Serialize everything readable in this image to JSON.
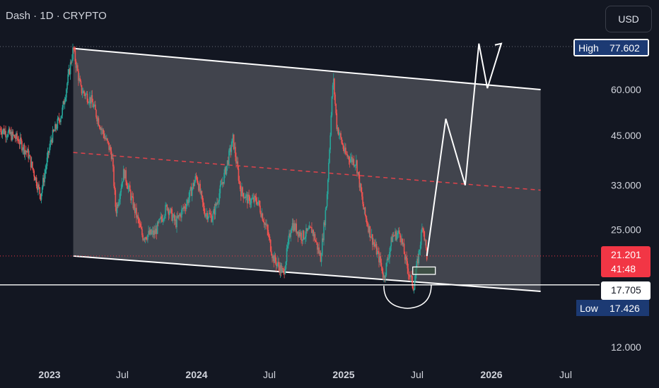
{
  "header": {
    "symbol_title": "Dash · 1D · CRYPTO",
    "currency_button": "USD"
  },
  "colors": {
    "background": "#131722",
    "channel_fill": "#4a4c55",
    "up": "#26a69a",
    "down": "#ef5350",
    "midline": "#e0434b",
    "current_line": "#f23645",
    "white": "#ffffff",
    "label_navy": "#1c3a73"
  },
  "chart_data": {
    "type": "candlestick",
    "title": "Dash · 1D · CRYPTO",
    "y_scale": "log",
    "y_ticks": [
      "60.000",
      "45.000",
      "33.000",
      "25.000",
      "12.000"
    ],
    "y_tick_values": [
      60,
      45,
      33,
      25,
      12
    ],
    "x_ticks": [
      {
        "label": "2023",
        "date": "2023-01-01",
        "bold": true
      },
      {
        "label": "Jul",
        "date": "2023-07-01",
        "bold": false
      },
      {
        "label": "2024",
        "date": "2024-01-01",
        "bold": true
      },
      {
        "label": "Jul",
        "date": "2024-07-01",
        "bold": false
      },
      {
        "label": "2025",
        "date": "2025-01-01",
        "bold": true
      },
      {
        "label": "Jul",
        "date": "2025-07-01",
        "bold": false
      },
      {
        "label": "2026",
        "date": "2026-01-01",
        "bold": true
      },
      {
        "label": "Jul",
        "date": "2026-07-01",
        "bold": false
      }
    ],
    "price_path": [
      [
        "2022-09-01",
        47
      ],
      [
        "2022-10-15",
        44
      ],
      [
        "2022-11-10",
        40
      ],
      [
        "2022-12-10",
        31
      ],
      [
        "2023-01-05",
        44
      ],
      [
        "2023-02-01",
        52
      ],
      [
        "2023-02-20",
        68
      ],
      [
        "2023-03-01",
        77.6
      ],
      [
        "2023-03-20",
        60
      ],
      [
        "2023-04-15",
        56
      ],
      [
        "2023-05-10",
        47
      ],
      [
        "2023-06-05",
        40
      ],
      [
        "2023-06-15",
        28
      ],
      [
        "2023-07-05",
        36
      ],
      [
        "2023-07-25",
        30
      ],
      [
        "2023-08-20",
        24
      ],
      [
        "2023-09-20",
        24.5
      ],
      [
        "2023-10-20",
        29
      ],
      [
        "2023-11-10",
        26
      ],
      [
        "2023-12-10",
        30
      ],
      [
        "2024-01-01",
        35
      ],
      [
        "2024-01-20",
        28
      ],
      [
        "2024-02-10",
        27
      ],
      [
        "2024-03-10",
        35
      ],
      [
        "2024-04-01",
        44
      ],
      [
        "2024-04-20",
        32
      ],
      [
        "2024-05-10",
        30
      ],
      [
        "2024-06-01",
        30
      ],
      [
        "2024-06-25",
        25
      ],
      [
        "2024-07-10",
        21
      ],
      [
        "2024-08-05",
        19
      ],
      [
        "2024-08-25",
        26
      ],
      [
        "2024-09-20",
        24
      ],
      [
        "2024-10-15",
        25
      ],
      [
        "2024-11-05",
        21
      ],
      [
        "2024-11-20",
        30
      ],
      [
        "2024-12-06",
        65
      ],
      [
        "2024-12-15",
        48
      ],
      [
        "2025-01-05",
        40
      ],
      [
        "2025-02-01",
        38
      ],
      [
        "2025-02-20",
        28
      ],
      [
        "2025-03-10",
        24
      ],
      [
        "2025-04-01",
        20.5
      ],
      [
        "2025-04-10",
        18.5
      ],
      [
        "2025-05-01",
        24
      ],
      [
        "2025-05-20",
        24.5
      ],
      [
        "2025-06-05",
        20
      ],
      [
        "2025-06-22",
        17.43
      ],
      [
        "2025-07-05",
        21.5
      ],
      [
        "2025-07-15",
        26
      ],
      [
        "2025-07-25",
        21.2
      ]
    ],
    "channel": {
      "upper": [
        [
          "2023-03-01",
          77.6
        ],
        [
          "2026-05-01",
          60
        ]
      ],
      "lower": [
        [
          "2023-03-01",
          21.2
        ],
        [
          "2026-05-01",
          17.0
        ]
      ],
      "midline": [
        [
          "2023-03-01",
          40.5
        ],
        [
          "2026-05-01",
          32
        ]
      ]
    },
    "projection": [
      [
        "2025-07-25",
        21.2
      ],
      [
        "2025-09-10",
        50
      ],
      [
        "2025-10-28",
        33
      ],
      [
        "2025-12-01",
        80
      ],
      [
        "2025-12-22",
        60.5
      ],
      [
        "2026-01-25",
        80
      ]
    ],
    "demand_zone": {
      "x0": "2025-06-20",
      "x1": "2025-08-15",
      "y0": 18.9,
      "y1": 19.8
    },
    "support_line": 17.705,
    "current_price": 21.201,
    "countdown": "41:48",
    "high": {
      "label": "High",
      "value": "77.602"
    },
    "low": {
      "label": "Low",
      "value": "17.426"
    },
    "support_label": "17.705",
    "current_label": "21.201"
  }
}
